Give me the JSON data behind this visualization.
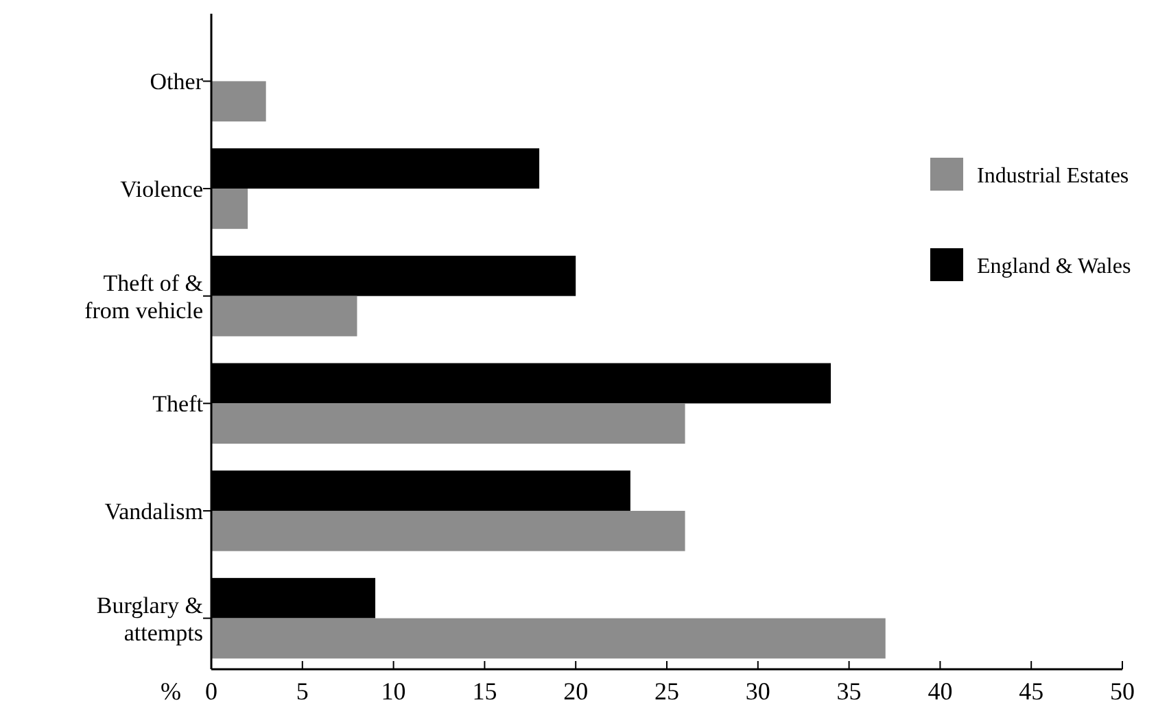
{
  "chart_data": {
    "type": "bar",
    "orientation": "horizontal",
    "xlabel": "%",
    "categories": [
      "Other",
      "Violence",
      "Theft of &\nfrom vehicle",
      "Theft",
      "Vandalism",
      "Burglary &\nattempts"
    ],
    "series": [
      {
        "name": "England & Wales",
        "color": "#000000",
        "values": [
          null,
          18,
          20,
          34,
          23,
          9
        ]
      },
      {
        "name": "Industrial Estates",
        "color": "#8c8c8c",
        "values": [
          3,
          2,
          8,
          26,
          26,
          37
        ]
      }
    ],
    "xlim": [
      0,
      50
    ],
    "xticks": [
      0,
      5,
      10,
      15,
      20,
      25,
      30,
      35,
      40,
      45,
      50
    ],
    "grid": false,
    "legend": "top right"
  }
}
